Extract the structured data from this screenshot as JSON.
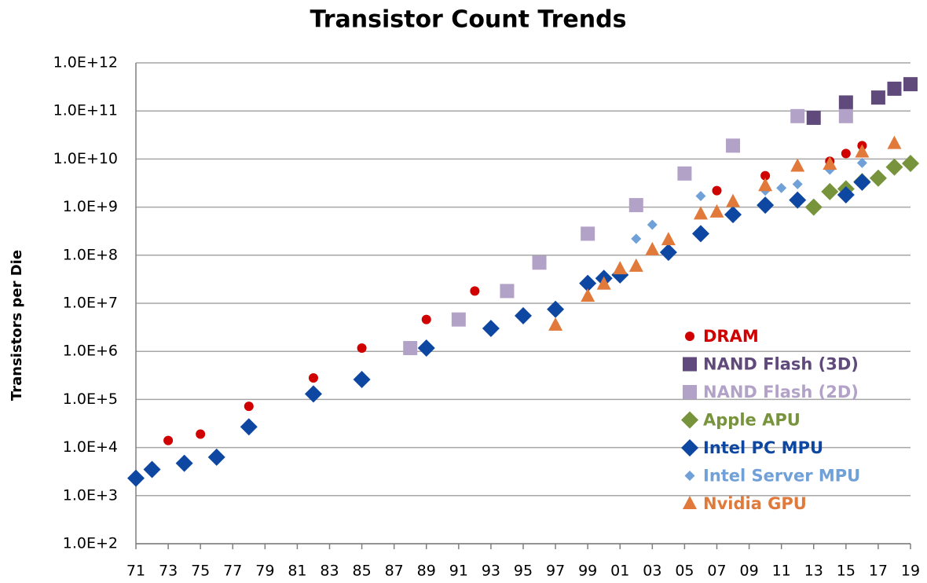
{
  "chart_data": {
    "type": "scatter",
    "title": "Transistor Count Trends",
    "ylabel": "Transistors per Die",
    "yscale": "log",
    "grid": true,
    "legend": "lower right",
    "xlim": [
      1971,
      2019
    ],
    "xticks": [
      {
        "value": 1971,
        "label": "71"
      },
      {
        "value": 1973,
        "label": "73"
      },
      {
        "value": 1975,
        "label": "75"
      },
      {
        "value": 1977,
        "label": "77"
      },
      {
        "value": 1979,
        "label": "79"
      },
      {
        "value": 1981,
        "label": "81"
      },
      {
        "value": 1983,
        "label": "83"
      },
      {
        "value": 1985,
        "label": "85"
      },
      {
        "value": 1987,
        "label": "87"
      },
      {
        "value": 1989,
        "label": "89"
      },
      {
        "value": 1991,
        "label": "91"
      },
      {
        "value": 1993,
        "label": "93"
      },
      {
        "value": 1995,
        "label": "95"
      },
      {
        "value": 1997,
        "label": "97"
      },
      {
        "value": 1999,
        "label": "99"
      },
      {
        "value": 2001,
        "label": "01"
      },
      {
        "value": 2003,
        "label": "03"
      },
      {
        "value": 2005,
        "label": "05"
      },
      {
        "value": 2007,
        "label": "07"
      },
      {
        "value": 2009,
        "label": "09"
      },
      {
        "value": 2011,
        "label": "11"
      },
      {
        "value": 2013,
        "label": "13"
      },
      {
        "value": 2015,
        "label": "15"
      },
      {
        "value": 2017,
        "label": "17"
      },
      {
        "value": 2019,
        "label": "19"
      }
    ],
    "ylim": [
      100,
      1000000000000
    ],
    "yticks": [
      {
        "value": 100,
        "label": "1.0E+2"
      },
      {
        "value": 1000,
        "label": "1.0E+3"
      },
      {
        "value": 10000,
        "label": "1.0E+4"
      },
      {
        "value": 100000,
        "label": "1.0E+5"
      },
      {
        "value": 1000000,
        "label": "1.0E+6"
      },
      {
        "value": 10000000,
        "label": "1.0E+7"
      },
      {
        "value": 100000000,
        "label": "1.0E+8"
      },
      {
        "value": 1000000000,
        "label": "1.0E+9"
      },
      {
        "value": 10000000000,
        "label": "1.0E+10"
      },
      {
        "value": 100000000000,
        "label": "1.0E+11"
      },
      {
        "value": 1000000000000,
        "label": "1.0E+12"
      }
    ],
    "series": [
      {
        "name": "DRAM",
        "color": "#d00000",
        "marker": "circle",
        "x": [
          1973,
          1975,
          1978,
          1982,
          1985,
          1989,
          1992,
          1996,
          1999,
          2002,
          2007,
          2010,
          2014,
          2015,
          2016
        ],
        "values": [
          14000,
          19000,
          72000,
          280000,
          1170000,
          4600000,
          18000000,
          70000000,
          280000000,
          1100000000,
          2200000000,
          4500000000,
          9000000000,
          13000000000,
          19000000000
        ]
      },
      {
        "name": "NAND Flash (3D)",
        "color": "#604a7b",
        "marker": "square",
        "x": [
          2013,
          2015,
          2017,
          2018,
          2019
        ],
        "values": [
          72000000000,
          150000000000,
          190000000000,
          290000000000,
          360000000000
        ]
      },
      {
        "name": "NAND Flash (2D)",
        "color": "#b3a2c7",
        "marker": "square",
        "x": [
          1988,
          1991,
          1994,
          1996,
          1999,
          2002,
          2005,
          2008,
          2012,
          2015
        ],
        "values": [
          1170000,
          4600000,
          18000000,
          70000000,
          280000000,
          1100000000,
          5000000000,
          19000000000,
          78000000000,
          78000000000
        ]
      },
      {
        "name": "Apple APU",
        "color": "#77933c",
        "marker": "diamond",
        "x": [
          2013,
          2014,
          2015,
          2016,
          2017,
          2018,
          2019
        ],
        "values": [
          1000000000,
          2100000000,
          2400000000,
          3400000000,
          4000000000,
          6800000000,
          8100000000
        ]
      },
      {
        "name": "Intel PC MPU",
        "color": "#0d47a1",
        "marker": "diamond",
        "x": [
          1971,
          1972,
          1974,
          1976,
          1978,
          1982,
          1985,
          1989,
          1993,
          1995,
          1997,
          1999,
          2000,
          2001,
          2004,
          2006,
          2008,
          2010,
          2012,
          2015,
          2016
        ],
        "values": [
          2300,
          3500,
          4700,
          6300,
          27000,
          130000,
          260000,
          1170000,
          3000000,
          5500000,
          7500000,
          26000000,
          33000000,
          39000000,
          115000000,
          280000000,
          700000000,
          1100000000,
          1400000000,
          1800000000,
          3300000000
        ]
      },
      {
        "name": "Intel Server MPU",
        "color": "#6fa0d8",
        "marker": "small-diamond",
        "x": [
          2002,
          2003,
          2006,
          2010,
          2011,
          2012,
          2014,
          2016
        ],
        "values": [
          220000000,
          430000000,
          1700000000,
          2200000000,
          2500000000,
          3000000000,
          6000000000,
          8300000000
        ]
      },
      {
        "name": "Nvidia GPU",
        "color": "#e0793a",
        "marker": "triangle",
        "x": [
          1997,
          1999,
          2000,
          2001,
          2002,
          2003,
          2004,
          2006,
          2007,
          2008,
          2010,
          2012,
          2014,
          2016,
          2018
        ],
        "values": [
          3500000,
          14000000,
          25000000,
          52000000,
          59000000,
          130000000,
          210000000,
          720000000,
          790000000,
          1300000000,
          2800000000,
          7100000000,
          7800000000,
          14000000000,
          21000000000
        ]
      }
    ]
  }
}
